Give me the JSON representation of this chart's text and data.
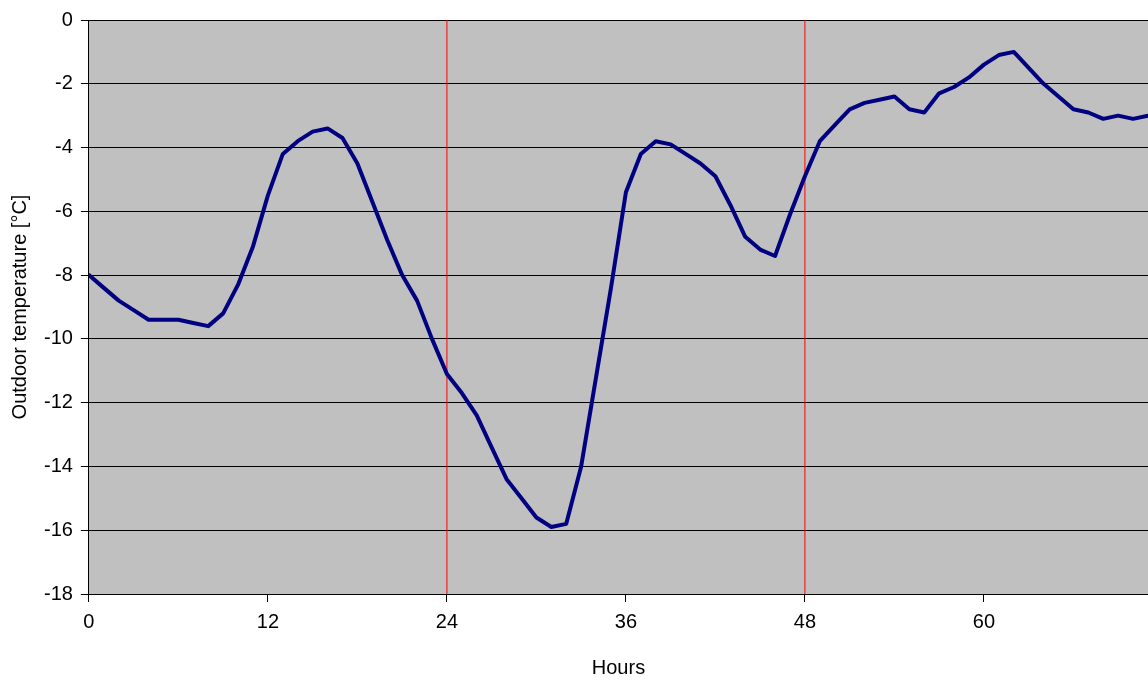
{
  "chart_data": {
    "type": "line",
    "xlabel": "Hours",
    "ylabel": "Outdoor temperature [°C]",
    "x": [
      0,
      1,
      2,
      3,
      4,
      5,
      6,
      7,
      8,
      9,
      10,
      11,
      12,
      13,
      14,
      15,
      16,
      17,
      18,
      19,
      20,
      21,
      22,
      23,
      24,
      25,
      26,
      27,
      28,
      29,
      30,
      31,
      32,
      33,
      34,
      35,
      36,
      37,
      38,
      39,
      40,
      41,
      42,
      43,
      44,
      45,
      46,
      47,
      48,
      49,
      50,
      51,
      52,
      53,
      54,
      55,
      56,
      57,
      58,
      59,
      60,
      61,
      62,
      63,
      64,
      65,
      66,
      67,
      68,
      69,
      70,
      71
    ],
    "series": [
      {
        "color": "#000080",
        "values": [
          -8.0,
          -8.4,
          -8.8,
          -9.1,
          -9.4,
          -9.4,
          -9.4,
          -9.5,
          -9.6,
          -9.2,
          -8.3,
          -7.1,
          -5.5,
          -4.2,
          -3.8,
          -3.5,
          -3.4,
          -3.7,
          -4.5,
          -5.7,
          -6.9,
          -8.0,
          -8.8,
          -10.0,
          -11.1,
          -11.7,
          -12.4,
          -13.4,
          -14.4,
          -15.0,
          -15.6,
          -15.9,
          -15.8,
          -14.0,
          -11.2,
          -8.4,
          -5.4,
          -4.2,
          -3.8,
          -3.9,
          -4.2,
          -4.5,
          -4.9,
          -5.8,
          -6.8,
          -7.2,
          -7.4,
          -6.1,
          -4.9,
          -3.8,
          -3.3,
          -2.8,
          -2.6,
          -2.5,
          -2.4,
          -2.8,
          -2.9,
          -2.3,
          -2.1,
          -1.8,
          -1.4,
          -1.1,
          -1.0,
          -1.5,
          -2.0,
          -2.4,
          -2.8,
          -2.9,
          -3.1,
          -3.0,
          -3.1,
          -3.0
        ]
      }
    ],
    "xlim": [
      0,
      71
    ],
    "xticks": [
      0,
      12,
      24,
      36,
      48,
      60
    ],
    "ylim": [
      -18,
      0
    ],
    "yticks": [
      -18,
      -16,
      -14,
      -12,
      -10,
      -8,
      -6,
      -4,
      -2,
      0
    ],
    "grid": "y",
    "legend": false,
    "marker": "none",
    "line_style": "solid",
    "ref_lines": [
      {
        "axis": "x",
        "value": 24,
        "color": "#ff0000"
      },
      {
        "axis": "x",
        "value": 48,
        "color": "#ff0000"
      }
    ]
  }
}
